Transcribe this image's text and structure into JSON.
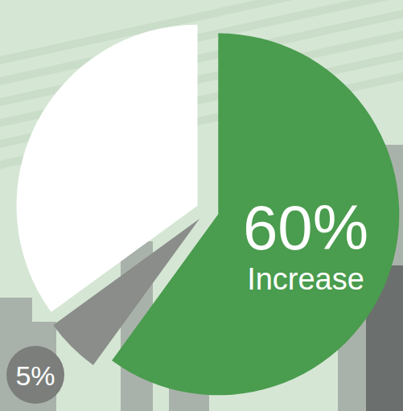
{
  "chart_data": {
    "type": "pie",
    "categories": [
      "Increase",
      null,
      null
    ],
    "values": [
      60,
      5,
      35
    ],
    "value_labels": [
      "60%",
      "5%",
      null
    ],
    "colors": [
      "#4a9c4e",
      "#8a8d89",
      "#ffffff"
    ],
    "data_labels": true
  }
}
